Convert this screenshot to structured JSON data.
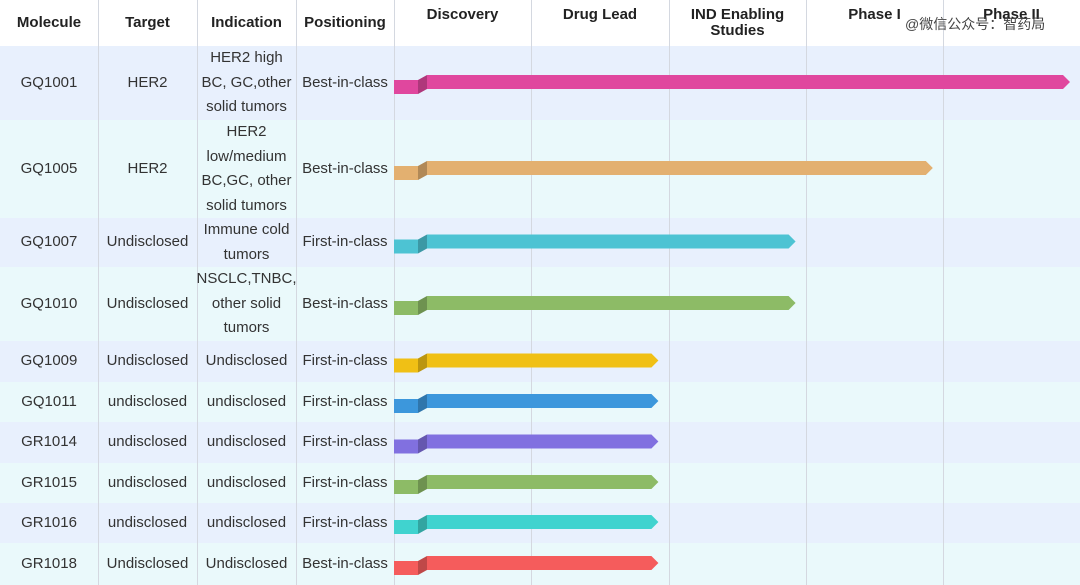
{
  "chart_data": {
    "type": "bar",
    "subtype": "pipeline-progress",
    "columns": {
      "molecule": "Molecule",
      "target": "Target",
      "indication": "Indication",
      "positioning": "Positioning"
    },
    "stages": [
      "Discovery",
      "Drug Lead",
      "IND Enabling Studies",
      "Phase I",
      "Phase II"
    ],
    "rows": [
      {
        "molecule": "GQ1001",
        "target": "HER2",
        "indication": "HER2 high BC, GC,other solid tumors",
        "positioning": "Best-in-class",
        "progress": 5.0,
        "color": "#e0479e"
      },
      {
        "molecule": "GQ1005",
        "target": "HER2",
        "indication": "HER2 low/medium BC,GC, other solid tumors",
        "positioning": "Best-in-class",
        "progress": 4.0,
        "color": "#e3b070"
      },
      {
        "molecule": "GQ1007",
        "target": "Undisclosed",
        "indication": "Immune cold tumors",
        "positioning": "First-in-class",
        "progress": 3.0,
        "color": "#4dc3d3"
      },
      {
        "molecule": "GQ1010",
        "target": "Undisclosed",
        "indication": "NSCLC,TNBC, other solid tumors",
        "positioning": "Best-in-class",
        "progress": 3.0,
        "color": "#8dbb66"
      },
      {
        "molecule": "GQ1009",
        "target": "Undisclosed",
        "indication": "Undisclosed",
        "positioning": "First-in-class",
        "progress": 2.0,
        "color": "#f0c015"
      },
      {
        "molecule": "GQ1011",
        "target": "undisclosed",
        "indication": "undisclosed",
        "positioning": "First-in-class",
        "progress": 2.0,
        "color": "#3c97dc"
      },
      {
        "molecule": "GR1014",
        "target": "undisclosed",
        "indication": "undisclosed",
        "positioning": "First-in-class",
        "progress": 2.0,
        "color": "#8170e0"
      },
      {
        "molecule": "GR1015",
        "target": "undisclosed",
        "indication": "undisclosed",
        "positioning": "First-in-class",
        "progress": 2.0,
        "color": "#8dbb66"
      },
      {
        "molecule": "GR1016",
        "target": "undisclosed",
        "indication": "undisclosed",
        "positioning": "First-in-class",
        "progress": 2.0,
        "color": "#40d3cf"
      },
      {
        "molecule": "GR1018",
        "target": "Undisclosed",
        "indication": "Undisclosed",
        "positioning": "Best-in-class",
        "progress": 2.0,
        "color": "#f55c5c"
      }
    ],
    "watermark": "@微信公众号：智药局"
  }
}
